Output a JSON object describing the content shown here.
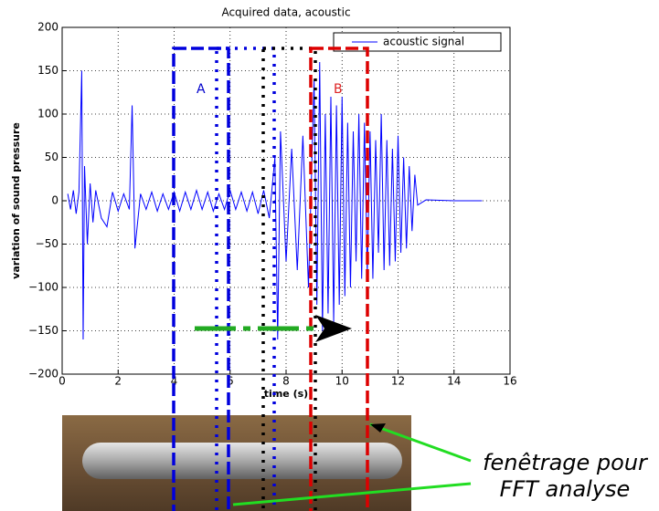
{
  "chart_data": {
    "type": "line",
    "title": "Acquired data, acoustic",
    "x_label": "time (s)",
    "y_label": "variation of sound pressure",
    "x": [
      0.2,
      0.3,
      0.4,
      0.5,
      0.6,
      0.7,
      0.75,
      0.8,
      0.9,
      1.0,
      1.1,
      1.2,
      1.4,
      1.6,
      1.8,
      2.0,
      2.2,
      2.4,
      2.5,
      2.6,
      2.8,
      3.0,
      3.2,
      3.4,
      3.6,
      3.8,
      4.0,
      4.2,
      4.4,
      4.6,
      4.8,
      5.0,
      5.2,
      5.4,
      5.6,
      5.8,
      6.0,
      6.2,
      6.4,
      6.6,
      6.8,
      7.0,
      7.2,
      7.4,
      7.6,
      7.7,
      7.8,
      8.0,
      8.2,
      8.4,
      8.6,
      8.8,
      9.0,
      9.1,
      9.2,
      9.3,
      9.4,
      9.5,
      9.6,
      9.7,
      9.8,
      9.9,
      10.0,
      10.1,
      10.2,
      10.3,
      10.4,
      10.5,
      10.6,
      10.7,
      10.8,
      10.9,
      11.0,
      11.1,
      11.2,
      11.3,
      11.4,
      11.5,
      11.6,
      11.7,
      11.8,
      11.9,
      12.0,
      12.1,
      12.2,
      12.3,
      12.4,
      12.5,
      12.6,
      12.7,
      13.0,
      14.0,
      15.0
    ],
    "series": [
      {
        "name": "acoustic signal",
        "color": "#0000ff",
        "values": [
          8,
          -10,
          12,
          -15,
          10,
          150,
          -160,
          40,
          -50,
          20,
          -25,
          12,
          -20,
          -30,
          10,
          -12,
          8,
          -10,
          110,
          -55,
          8,
          -10,
          10,
          -12,
          8,
          -10,
          10,
          -12,
          10,
          -10,
          12,
          -10,
          10,
          -12,
          8,
          -10,
          12,
          -10,
          10,
          -12,
          10,
          -15,
          12,
          -20,
          50,
          -160,
          80,
          -70,
          60,
          -80,
          75,
          -100,
          140,
          -120,
          160,
          -150,
          100,
          -130,
          120,
          -140,
          110,
          -120,
          120,
          -110,
          90,
          -100,
          80,
          -70,
          100,
          -90,
          90,
          -85,
          80,
          -90,
          70,
          -60,
          100,
          -80,
          70,
          -75,
          60,
          -70,
          75,
          -60,
          50,
          -55,
          40,
          -35,
          30,
          -5,
          1,
          0,
          0
        ]
      }
    ],
    "xlim": [
      0,
      16
    ],
    "xticks": [
      0,
      2,
      4,
      6,
      8,
      10,
      12,
      14,
      16
    ],
    "ylim": [
      -200,
      200
    ],
    "yticks": [
      {
        "value": -200,
        "label": "−200"
      },
      {
        "value": -150,
        "label": "−150"
      },
      {
        "value": -100,
        "label": "−100"
      },
      {
        "value": -50,
        "label": "−50"
      },
      0,
      50,
      100,
      150,
      200
    ],
    "grid": true,
    "legend": "upper right",
    "annotations": {
      "window_a": "A",
      "window_b": "B",
      "note_line1": "fenêtrage pour",
      "note_line2": "FFT analyse"
    }
  }
}
